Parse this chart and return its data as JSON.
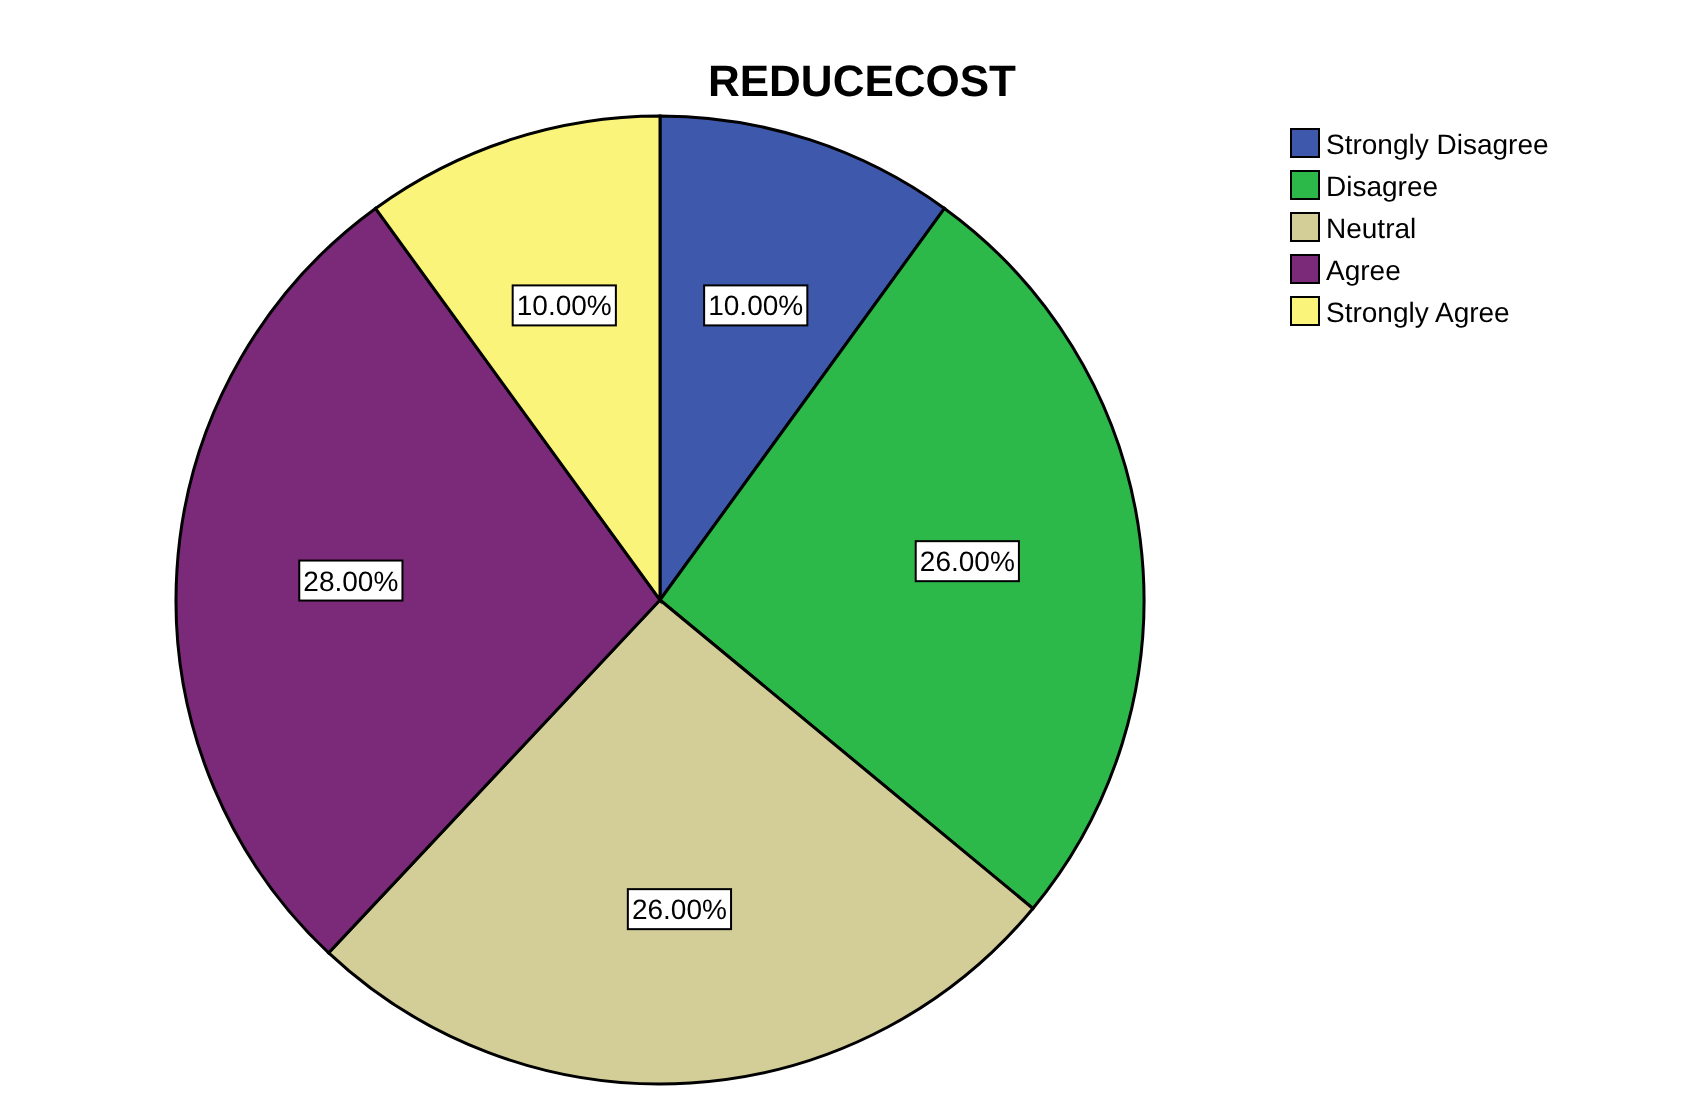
{
  "chart_data": {
    "type": "pie",
    "title": "REDUCECOST",
    "categories": [
      "Strongly Disagree",
      "Disagree",
      "Neutral",
      "Agree",
      "Strongly Agree"
    ],
    "values": [
      10,
      26,
      26,
      28,
      10
    ],
    "colors": [
      "#3e58ac",
      "#2db84a",
      "#d3ce97",
      "#7b2a7a",
      "#faf57a"
    ],
    "value_labels": [
      "10.00%",
      "26.00%",
      "26.00%",
      "28.00%",
      "10.00%"
    ],
    "legend": "top right"
  }
}
